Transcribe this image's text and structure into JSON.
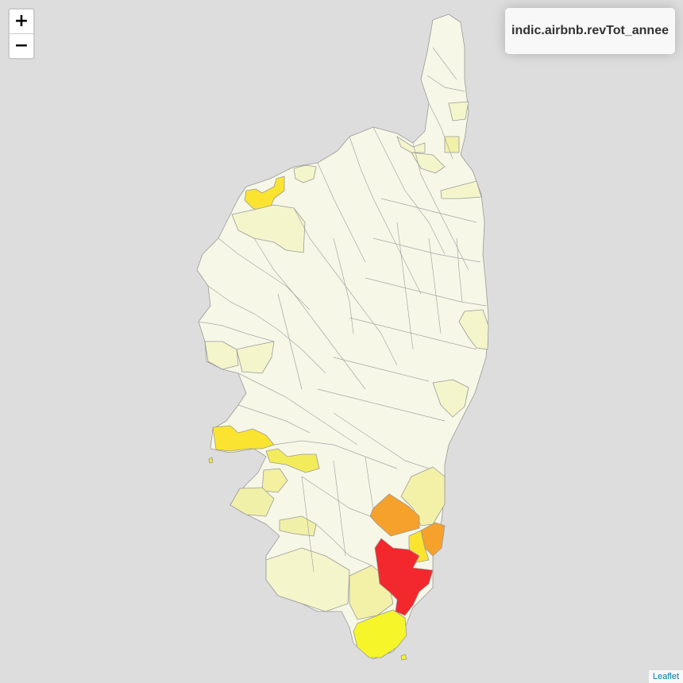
{
  "zoom": {
    "in_label": "+",
    "out_label": "−"
  },
  "legend": {
    "title": "indic.airbnb.revTot_annee"
  },
  "attribution": {
    "link_text": "Leaflet"
  },
  "colors": {
    "background": "#dddddd",
    "base": "#f7f7e7",
    "very_light": "#f5f5cc",
    "light": "#f1f0a8",
    "mid_yellow": "#f3ec5a",
    "yellow": "#fbe42f",
    "bright_yellow": "#f5f52a",
    "orange": "#f5a12b",
    "red": "#f2282d",
    "border": "#9a9a9a"
  }
}
